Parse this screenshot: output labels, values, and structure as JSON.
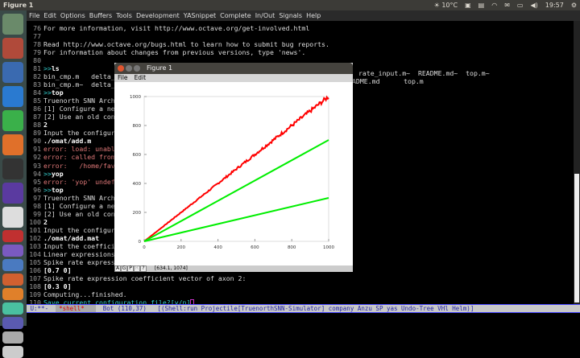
{
  "topbar": {
    "title": "Figure 1",
    "weather": "10°C",
    "clock": "19:57",
    "icons": [
      "weather-sun-icon",
      "dropbox-icon",
      "clipboard-icon",
      "wifi-icon",
      "mail-icon",
      "battery-icon",
      "volume-icon",
      "gear-icon"
    ]
  },
  "launcher": {
    "colors": [
      "#6a8a6a",
      "#b04a3a",
      "#3a6ab0",
      "#2a7ad0",
      "#3ab04a",
      "#e0702a",
      "#333",
      "#5a3aa0",
      "#ddd",
      "#c03030",
      "#7a5ac0",
      "#4a7ac0",
      "#d06030",
      "#e0802a",
      "#4ac0a0",
      "#5a5ab0",
      "#aaa",
      "#ccc"
    ]
  },
  "menubar": [
    "File",
    "Edit",
    "Options",
    "Buffers",
    "Tools",
    "Development",
    "YASnippet",
    "Complete",
    "In/Out",
    "Signals",
    "Help"
  ],
  "lines": [
    {
      "n": "76",
      "t": "For more information, visit http://www.octave.org/get-involved.html",
      "c": ""
    },
    {
      "n": "77",
      "t": "",
      "c": ""
    },
    {
      "n": "78",
      "t": "Read http://www.octave.org/bugs.html to learn how to submit bug reports.",
      "c": ""
    },
    {
      "n": "79",
      "t": "For information about changes from previous versions, type 'news'.",
      "c": ""
    },
    {
      "n": "80",
      "t": "",
      "c": ""
    },
    {
      "n": "81",
      "p": ">>",
      "t": "ls",
      "c": "bold"
    },
    {
      "n": "82",
      "t": "bin_cmp.m   delta_f",
      "c": ""
    },
    {
      "n": "83",
      "t": "bin_cmp.m~  delta_f",
      "c": ""
    },
    {
      "n": "84",
      "p": ">>",
      "t": "top",
      "c": "bold"
    },
    {
      "n": "85",
      "t": "Truenorth SNN Archi",
      "c": ""
    },
    {
      "n": "86",
      "t": "[1] Configure a new",
      "c": ""
    },
    {
      "n": "87",
      "t": "[2] Use an old conf",
      "c": ""
    },
    {
      "n": "88",
      "t": "2",
      "c": "bold"
    },
    {
      "n": "89",
      "t": "Input the configura",
      "c": ""
    },
    {
      "n": "90",
      "t": "./omat/add.m",
      "c": "bold"
    },
    {
      "n": "91",
      "t": "error: load: unable",
      "c": "err"
    },
    {
      "n": "92",
      "t": "error: called from:",
      "c": "err"
    },
    {
      "n": "93",
      "t": "error:   /home/favo",
      "c": "err"
    },
    {
      "n": "94",
      "p": ">>",
      "t": "yop",
      "c": "bold"
    },
    {
      "n": "95",
      "t": "error: 'yop' undefi",
      "c": "err"
    },
    {
      "n": "96",
      "p": ">>",
      "t": "top",
      "c": "bold"
    },
    {
      "n": "97",
      "t": "Truenorth SNN Archi",
      "c": ""
    },
    {
      "n": "98",
      "t": "[1] Configure a new",
      "c": ""
    },
    {
      "n": "99",
      "t": "[2] Use an old conf",
      "c": ""
    },
    {
      "n": "100",
      "t": "2",
      "c": "bold"
    },
    {
      "n": "101",
      "t": "Input the configura",
      "c": ""
    },
    {
      "n": "102",
      "t": "./omat/add.mat",
      "c": "bold"
    },
    {
      "n": "103",
      "t": "Input the coefficie",
      "c": ""
    },
    {
      "n": "104",
      "t": "Linear expressions",
      "c": ""
    },
    {
      "n": "105",
      "t": "Spike rate expressi",
      "c": ""
    },
    {
      "n": "106",
      "t": "[0.7 0]",
      "c": "bold"
    },
    {
      "n": "107",
      "t": "Spike rate expression coefficient vector of axon 2:",
      "c": ""
    },
    {
      "n": "108",
      "t": "[0.3 0]",
      "c": "bold"
    },
    {
      "n": "109",
      "t": "Computing...finished.",
      "c": ""
    },
    {
      "n": "110",
      "t": "Save current configuration file?[y/n]",
      "c": "cyan"
    }
  ],
  "right_fragments": {
    "line82": "rate_input.m~  README.md~  top.m~",
    "line83": "ADME.md      top.m"
  },
  "modeline": {
    "state": "U:**-",
    "buffer": "*shell*",
    "pos": "Bot (110,37)",
    "modes": "[(Shell:run Projectile[TruenorthSNN-Simulator] company Anzu SP yas Undo-Tree VHl Helm)]"
  },
  "figure": {
    "title": "Figure 1",
    "menu": [
      "File",
      "Edit"
    ],
    "toolbar": [
      "A",
      "G",
      "P",
      "R",
      "?"
    ],
    "coords": "[634.1, 1074]"
  },
  "chart_data": {
    "type": "line",
    "xlim": [
      0,
      1000
    ],
    "ylim": [
      0,
      1000
    ],
    "xticks": [
      "0",
      "200",
      "400",
      "600",
      "800",
      "1000"
    ],
    "yticks": [
      "0",
      "200",
      "400",
      "600",
      "800",
      "1000"
    ],
    "grid": false,
    "series": [
      {
        "color": "#ff0000",
        "x": [
          0,
          1000
        ],
        "y": [
          0,
          1000
        ],
        "noisy": true
      },
      {
        "color": "#00ee00",
        "x": [
          0,
          1000
        ],
        "y": [
          0,
          700
        ]
      },
      {
        "color": "#00ee00",
        "x": [
          0,
          1000
        ],
        "y": [
          0,
          300
        ]
      }
    ]
  }
}
